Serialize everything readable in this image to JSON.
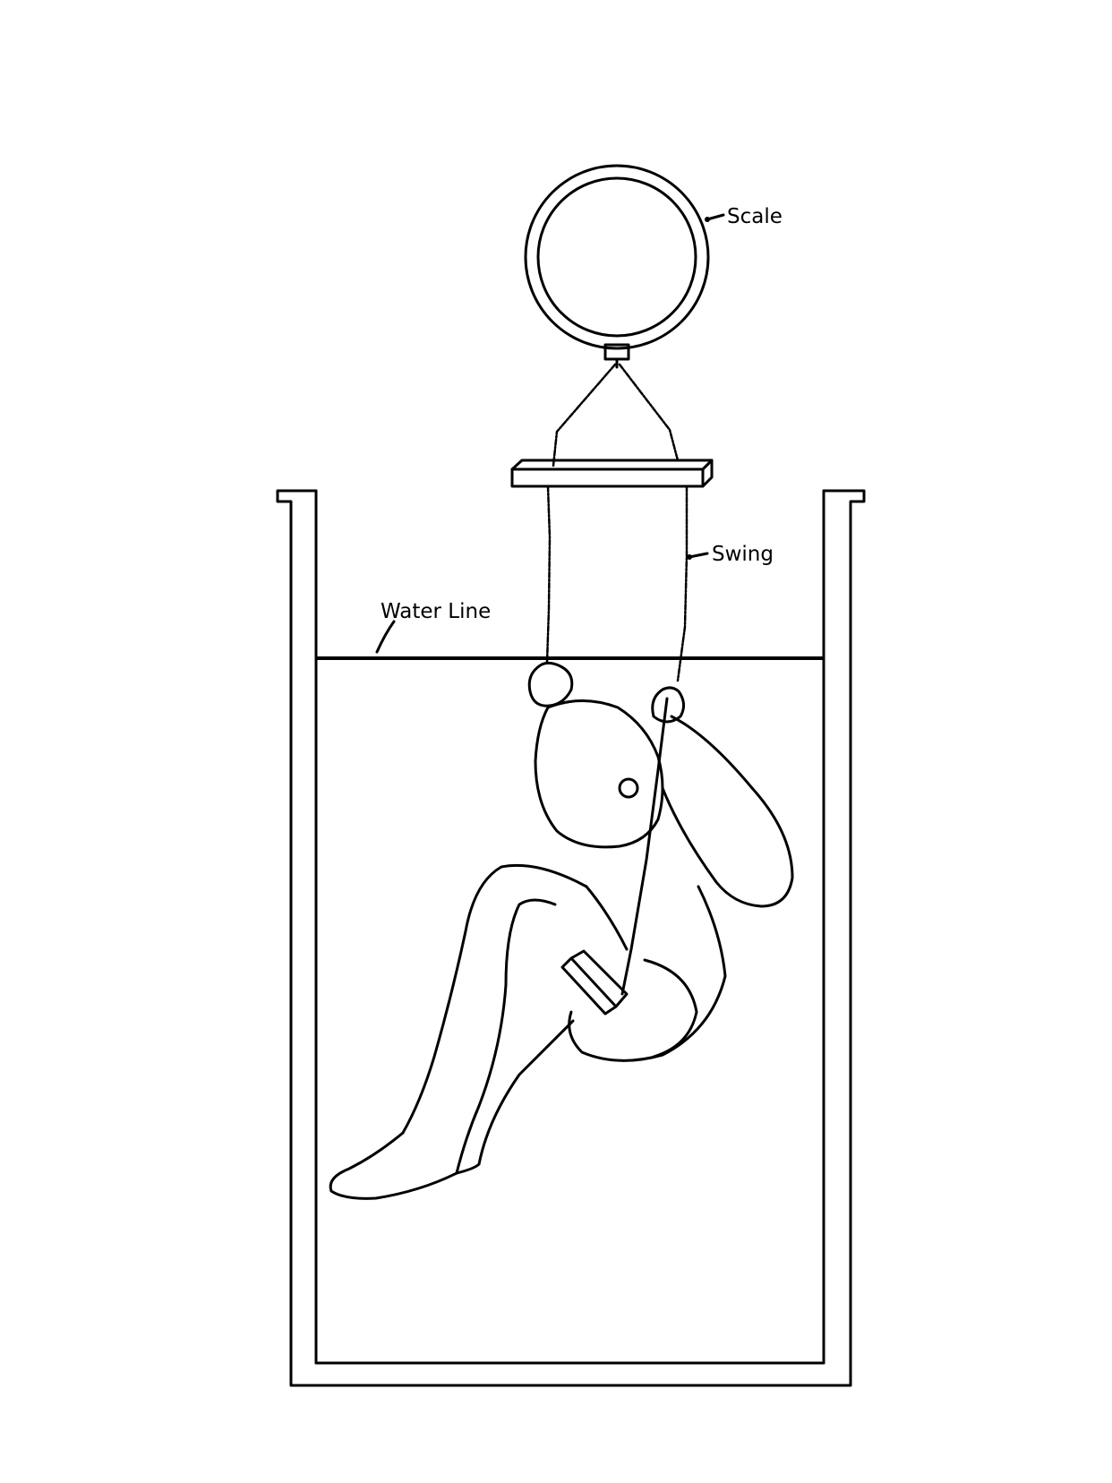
{
  "labels": {
    "scale": "Scale",
    "swing": "Swing",
    "water_line": "Water Line"
  },
  "colors": {
    "ink": "#000000",
    "background": "#ffffff"
  }
}
